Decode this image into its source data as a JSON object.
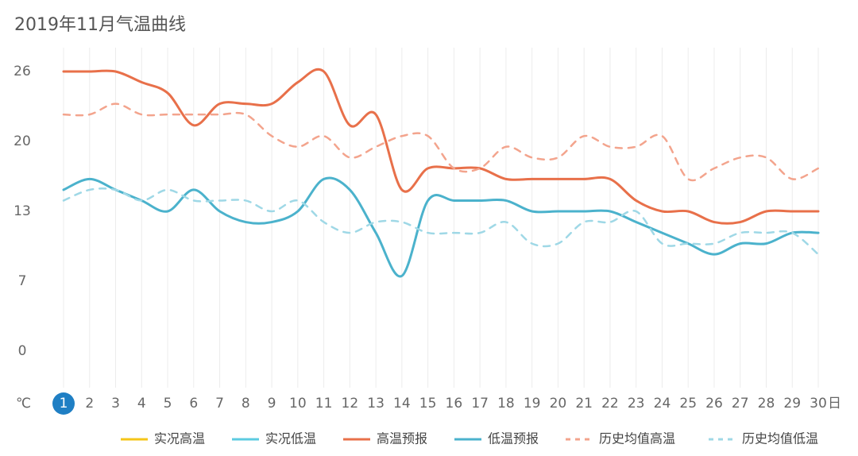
{
  "chart_data": {
    "type": "line",
    "title": "2019年11月气温曲线",
    "categories": [
      "1",
      "2",
      "3",
      "4",
      "5",
      "6",
      "7",
      "8",
      "9",
      "10",
      "11",
      "12",
      "13",
      "14",
      "15",
      "16",
      "17",
      "18",
      "19",
      "20",
      "21",
      "22",
      "23",
      "24",
      "25",
      "26",
      "27",
      "28",
      "29",
      "30"
    ],
    "x_unit": "日",
    "y_unit": "℃",
    "highlight_index": 0,
    "ylim": [
      0,
      26
    ],
    "yticks": [
      0,
      {
        "value": 6.5,
        "label": "7"
      },
      13,
      {
        "value": 19.5,
        "label": "20"
      },
      26
    ],
    "grid": "vertical",
    "series": [
      {
        "name": "实况高温",
        "color": "#f5c518",
        "style": "solid",
        "values": [
          null,
          null,
          null,
          null,
          null,
          null,
          null,
          null,
          null,
          null,
          null,
          null,
          null,
          null,
          null,
          null,
          null,
          null,
          null,
          null,
          null,
          null,
          null,
          null,
          null,
          null,
          null,
          null,
          null,
          null
        ]
      },
      {
        "name": "实况低温",
        "color": "#5ccbe0",
        "style": "solid",
        "values": [
          null,
          null,
          null,
          null,
          null,
          null,
          null,
          null,
          null,
          null,
          null,
          null,
          null,
          null,
          null,
          null,
          null,
          null,
          null,
          null,
          null,
          null,
          null,
          null,
          null,
          null,
          null,
          null,
          null,
          null
        ]
      },
      {
        "name": "高温预报",
        "color": "#e8704a",
        "style": "solid",
        "values": [
          26,
          26,
          26,
          25,
          24,
          21,
          23,
          23,
          23,
          25,
          26,
          21,
          22,
          15,
          17,
          17,
          17,
          16,
          16,
          16,
          16,
          16,
          14,
          13,
          13,
          12,
          12,
          13,
          13,
          13
        ]
      },
      {
        "name": "低温预报",
        "color": "#4bb2cc",
        "style": "solid",
        "values": [
          15,
          16,
          15,
          14,
          13,
          15,
          13,
          12,
          12,
          13,
          16,
          15,
          11,
          7,
          14,
          14,
          14,
          14,
          13,
          13,
          13,
          13,
          12,
          11,
          10,
          9,
          10,
          10,
          11,
          11
        ]
      },
      {
        "name": "历史均值高温",
        "color": "#f3a48d",
        "style": "dashed",
        "values": [
          22,
          22,
          23,
          22,
          22,
          22,
          22,
          22,
          20,
          19,
          20,
          18,
          19,
          20,
          20,
          17,
          17,
          19,
          18,
          18,
          20,
          19,
          19,
          20,
          16,
          17,
          18,
          18,
          16,
          17
        ]
      },
      {
        "name": "历史均值低温",
        "color": "#9fd8e6",
        "style": "dashed",
        "values": [
          14,
          15,
          15,
          14,
          15,
          14,
          14,
          14,
          13,
          14,
          12,
          11,
          12,
          12,
          11,
          11,
          11,
          12,
          10,
          10,
          12,
          12,
          13,
          10,
          10,
          10,
          11,
          11,
          11,
          9
        ]
      }
    ]
  }
}
